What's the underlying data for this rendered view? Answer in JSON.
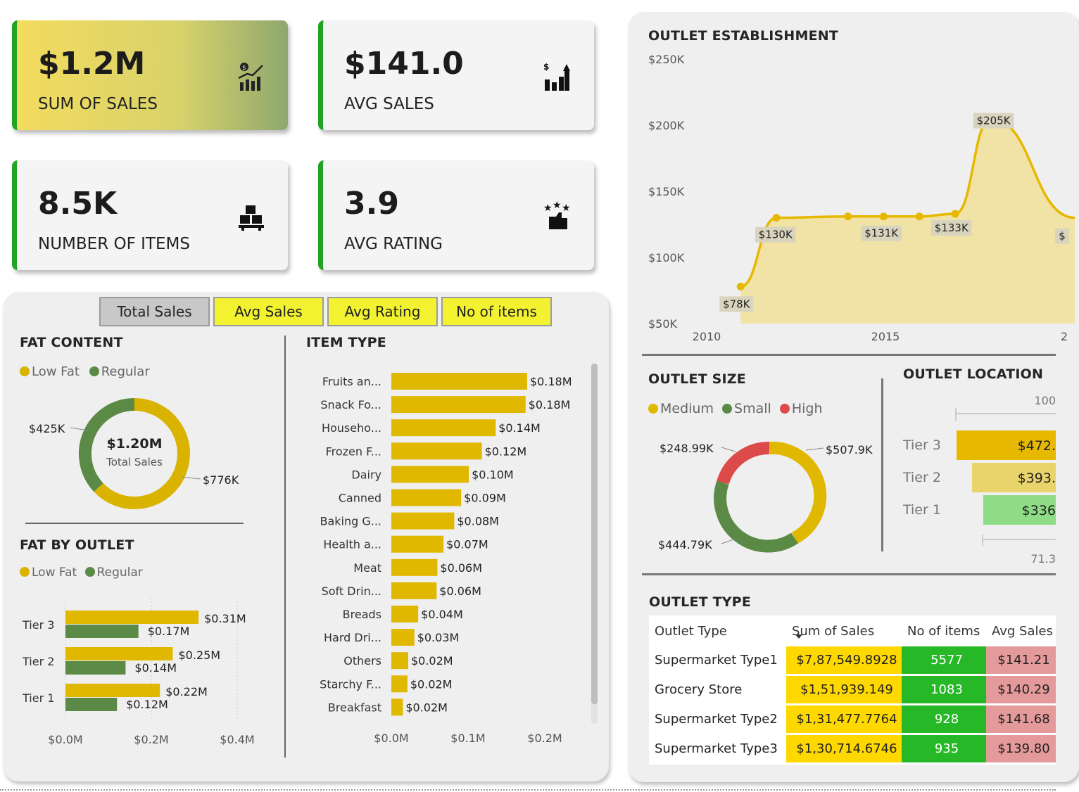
{
  "kpis": [
    {
      "value": "$1.2M",
      "label": "SUM OF SALES",
      "icon": "sales-chart-icon"
    },
    {
      "value": "$141.0",
      "label": "AVG SALES",
      "icon": "bar-growth-icon"
    },
    {
      "value": "8.5K",
      "label": "NUMBER OF ITEMS",
      "icon": "items-boxes-icon"
    },
    {
      "value": "3.9",
      "label": "AVG RATING",
      "icon": "rating-thumb-icon"
    }
  ],
  "tabs": [
    "Total Sales",
    "Avg Sales",
    "Avg Rating",
    "No of items"
  ],
  "active_tab": "Total Sales",
  "fat_content": {
    "title": "FAT CONTENT",
    "legend": [
      "Low Fat",
      "Regular"
    ],
    "center_value": "$1.20M",
    "center_label": "Total Sales",
    "labels": [
      "$776K",
      "$425K"
    ],
    "colors": [
      "#d9b300",
      "#5a8a45"
    ]
  },
  "fat_by_outlet": {
    "title": "FAT BY OUTLET",
    "legend": [
      "Low Fat",
      "Regular"
    ],
    "x_ticks": [
      "$0.0M",
      "$0.2M",
      "$0.4M"
    ]
  },
  "item_type": {
    "title": "ITEM TYPE",
    "x_ticks": [
      "$0.0M",
      "$0.1M",
      "$0.2M"
    ]
  },
  "outlet_establishment": {
    "title": "OUTLET ESTABLISHMENT"
  },
  "outlet_size": {
    "title": "OUTLET SIZE",
    "legend": [
      "Medium",
      "Small",
      "High"
    ],
    "labels": [
      "$507.9K",
      "$444.79K",
      "$248.99K"
    ]
  },
  "outlet_location": {
    "title": "OUTLET LOCATION",
    "top_value": "100",
    "bottom_value": "71.3"
  },
  "outlet_type": {
    "title": "OUTLET TYPE",
    "headers": [
      "Outlet Type",
      "Sum of Sales",
      "No of items",
      "Avg Sales"
    ],
    "rows": [
      [
        "Supermarket Type1",
        "$7,87,549.8928",
        "5577",
        "$141.21"
      ],
      [
        "Grocery Store",
        "$1,51,939.149",
        "1083",
        "$140.29"
      ],
      [
        "Supermarket Type2",
        "$1,31,477.7764",
        "928",
        "$141.68"
      ],
      [
        "Supermarket Type3",
        "$1,30,714.6746",
        "935",
        "$139.80"
      ]
    ]
  },
  "chart_data": [
    {
      "type": "pie",
      "title": "FAT CONTENT",
      "categories": [
        "Low Fat",
        "Regular"
      ],
      "values": [
        776,
        425
      ],
      "unit": "K"
    },
    {
      "type": "bar",
      "title": "FAT BY OUTLET",
      "categories": [
        "Tier 3",
        "Tier 2",
        "Tier 1"
      ],
      "series": [
        {
          "name": "Low Fat",
          "values": [
            0.31,
            0.25,
            0.22
          ],
          "labels": [
            "$0.31M",
            "$0.25M",
            "$0.22M"
          ]
        },
        {
          "name": "Regular",
          "values": [
            0.17,
            0.14,
            0.12
          ],
          "labels": [
            "$0.17M",
            "$0.14M",
            "$0.12M"
          ]
        }
      ],
      "xlim": [
        0,
        0.4
      ]
    },
    {
      "type": "bar",
      "title": "ITEM TYPE",
      "categories": [
        "Fruits an...",
        "Snack Fo...",
        "Househo...",
        "Frozen F...",
        "Dairy",
        "Canned",
        "Baking G...",
        "Health a...",
        "Meat",
        "Soft Drin...",
        "Breads",
        "Hard Dri...",
        "Others",
        "Starchy F...",
        "Breakfast"
      ],
      "values": [
        0.18,
        0.18,
        0.14,
        0.12,
        0.1,
        0.09,
        0.08,
        0.07,
        0.06,
        0.06,
        0.04,
        0.03,
        0.02,
        0.02,
        0.02
      ],
      "labels": [
        "$0.18M",
        "$0.18M",
        "$0.14M",
        "$0.12M",
        "$0.10M",
        "$0.09M",
        "$0.08M",
        "$0.07M",
        "$0.06M",
        "$0.06M",
        "$0.04M",
        "$0.03M",
        "$0.02M",
        "$0.02M",
        "$0.02M"
      ],
      "xlim": [
        0,
        0.2
      ]
    },
    {
      "type": "area",
      "title": "OUTLET ESTABLISHMENT",
      "x": [
        2011,
        2012,
        2014,
        2015,
        2016,
        2017,
        2018,
        2020
      ],
      "values": [
        78,
        130,
        131,
        131,
        131,
        133,
        205,
        130
      ],
      "labels": [
        "$78K",
        "$130K",
        "",
        "$131K",
        "",
        "$133K",
        "$205K",
        "$"
      ],
      "y_ticks": [
        "$50K",
        "$100K",
        "$150K",
        "$200K",
        "$250K"
      ],
      "x_ticks": [
        "2010",
        "2015",
        "2"
      ],
      "ylim": [
        50,
        250
      ]
    },
    {
      "type": "pie",
      "title": "OUTLET SIZE",
      "categories": [
        "Medium",
        "Small",
        "High"
      ],
      "values": [
        507.9,
        444.79,
        248.99
      ],
      "unit": "K"
    },
    {
      "type": "bar",
      "title": "OUTLET LOCATION",
      "categories": [
        "Tier 3",
        "Tier 2",
        "Tier 1"
      ],
      "values": [
        472,
        393,
        336
      ],
      "labels": [
        "$472.",
        "$393.",
        "$336"
      ]
    }
  ],
  "colors": {
    "gold": "#e0b800",
    "green": "#5a8a45",
    "red": "#dd4a4a",
    "kpi_accent": "#23a323"
  }
}
